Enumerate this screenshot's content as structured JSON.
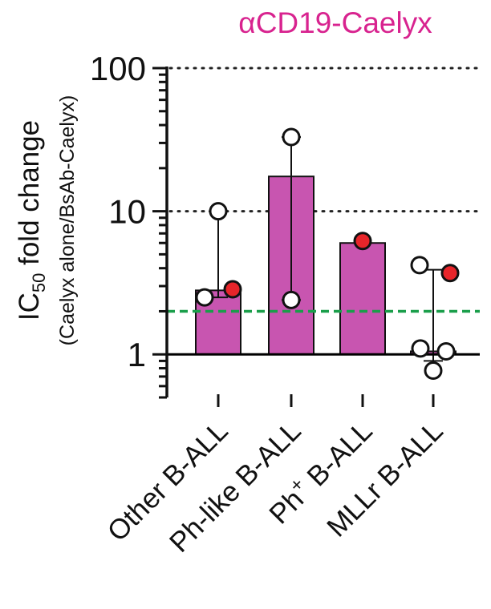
{
  "chart_data": {
    "type": "bar",
    "title": "αCD19-Caelyx",
    "ylabel_main": "IC",
    "ylabel_sub_script": "50",
    "ylabel_rest": " fold change",
    "ylabel_secondary": "(Caelyx alone/BsAb-Caelyx)",
    "yscale": "log",
    "ylim": [
      0.5,
      100
    ],
    "yticks": [
      1,
      10,
      100
    ],
    "ytick_labels": [
      "1",
      "10",
      "100"
    ],
    "grid": "dotted at 10 and 100",
    "threshold_line": {
      "value": 2,
      "color": "#1a9e4a",
      "style": "dashed"
    },
    "reference_line": {
      "value": 1,
      "color": "#000000"
    },
    "categories": [
      "Other B-ALL",
      "Ph-like B-ALL",
      "Ph+ B-ALL",
      "MLLr B-ALL"
    ],
    "category_labels": [
      {
        "text": "Other B-ALL",
        "sup": ""
      },
      {
        "text": "Ph-like B-ALL",
        "sup": ""
      },
      {
        "text": "Ph B-ALL",
        "sup": "+"
      },
      {
        "text": "MLLr B-ALL",
        "sup": ""
      }
    ],
    "bar_color": "#c855b0",
    "values": [
      2.8,
      17.5,
      6.0,
      1.05
    ],
    "error_range": [
      [
        2.5,
        10
      ],
      [
        2.4,
        33
      ],
      null,
      [
        0.9,
        3.9
      ]
    ],
    "points": [
      [
        {
          "y": 10,
          "fill": "open"
        },
        {
          "y": 2.5,
          "fill": "open"
        },
        {
          "y": 2.85,
          "fill": "red"
        }
      ],
      [
        {
          "y": 33,
          "fill": "open"
        },
        {
          "y": 2.4,
          "fill": "open"
        }
      ],
      [
        {
          "y": 6.2,
          "fill": "red"
        }
      ],
      [
        {
          "y": 4.2,
          "fill": "open"
        },
        {
          "y": 1.1,
          "fill": "open"
        },
        {
          "y": 1.05,
          "fill": "open"
        },
        {
          "y": 0.77,
          "fill": "open"
        },
        {
          "y": 3.7,
          "fill": "red"
        }
      ]
    ],
    "point_red_color": "#e8252a"
  }
}
